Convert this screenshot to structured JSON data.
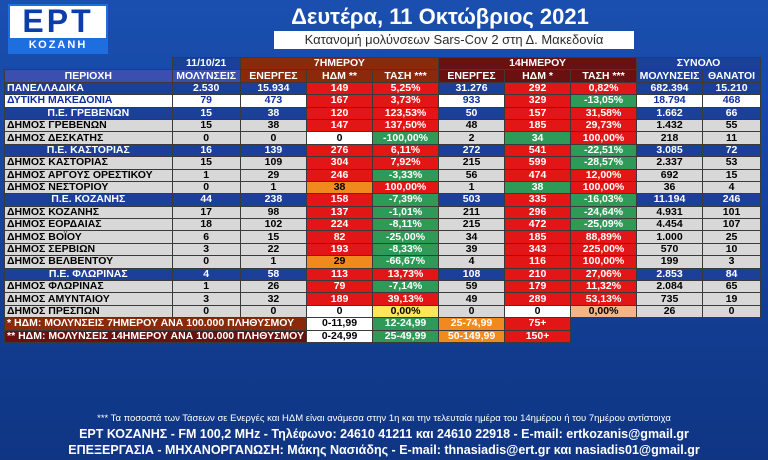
{
  "logo": {
    "main": "ΕΡΤ",
    "sub": "ΚΟΖΑΝΗ"
  },
  "title": "Δευτέρα, 11 Οκτώβριος 2021",
  "subtitle": "Κατανομή μολύνσεων Sars-Cov 2 στη Δ. Μακεδονία",
  "header_top": {
    "date": "11/10/21",
    "g7": "7ΗΜΕΡΟΥ",
    "g14": "14ΗΜΕΡΟΥ",
    "total": "ΣΥΝΟΛΟ"
  },
  "header": [
    "ΠΕΡΙΟΧΗ",
    "ΜΟΛΥΝΣΕΙΣ",
    "ΕΝΕΡΓΕΣ",
    "ΗΔΜ **",
    "ΤΑΣΗ ***",
    "ΕΝΕΡΓΕΣ",
    "ΗΔΜ *",
    "ΤΑΣΗ ***",
    "ΜΟΛΥΝΣΕΙΣ",
    "ΘΑΝΑΤΟΙ"
  ],
  "rows": [
    {
      "type": "nat",
      "c": [
        "ΠΑΝΕΛΛΑΔΙΚΑ",
        "2.530",
        "15.934",
        "149",
        "5,25%",
        "31.276",
        "292",
        "0,82%",
        "682.394",
        "15.210"
      ],
      "k": [
        "",
        "",
        "",
        "red",
        "red",
        "",
        "red",
        "red",
        "",
        ""
      ]
    },
    {
      "type": "reg",
      "c": [
        "ΔΥΤΙΚΗ ΜΑΚΕΔΟΝΙΑ",
        "79",
        "473",
        "167",
        "3,73%",
        "933",
        "329",
        "-13,05%",
        "18.794",
        "468"
      ],
      "k": [
        "",
        "",
        "",
        "red",
        "red",
        "",
        "red",
        "grn",
        "",
        ""
      ]
    },
    {
      "type": "pe",
      "c": [
        "Π.Ε. ΓΡΕΒΕΝΩΝ",
        "15",
        "38",
        "120",
        "123,53%",
        "50",
        "157",
        "31,58%",
        "1.662",
        "66"
      ],
      "k": [
        "",
        "",
        "",
        "red",
        "red",
        "",
        "red",
        "red",
        "",
        ""
      ]
    },
    {
      "type": "dm",
      "c": [
        "ΔΗΜΟΣ ΓΡΕΒΕΝΩΝ",
        "15",
        "38",
        "147",
        "137,50%",
        "48",
        "185",
        "29,73%",
        "1.432",
        "55"
      ],
      "k": [
        "",
        "",
        "",
        "red",
        "red",
        "",
        "red",
        "red",
        "",
        ""
      ]
    },
    {
      "type": "dm",
      "c": [
        "ΔΗΜΟΣ ΔΕΣΚΑΤΗΣ",
        "0",
        "0",
        "0",
        "-100,00%",
        "2",
        "34",
        "100,00%",
        "218",
        "11"
      ],
      "k": [
        "",
        "",
        "",
        "wht",
        "grn",
        "",
        "grn",
        "red",
        "",
        ""
      ]
    },
    {
      "type": "pe",
      "c": [
        "Π.Ε. ΚΑΣΤΟΡΙΑΣ",
        "16",
        "139",
        "276",
        "6,11%",
        "272",
        "541",
        "-22,51%",
        "3.085",
        "72"
      ],
      "k": [
        "",
        "",
        "",
        "red",
        "red",
        "",
        "red",
        "grn",
        "",
        ""
      ]
    },
    {
      "type": "dm",
      "c": [
        "ΔΗΜΟΣ ΚΑΣΤΟΡΙΑΣ",
        "15",
        "109",
        "304",
        "7,92%",
        "215",
        "599",
        "-28,57%",
        "2.337",
        "53"
      ],
      "k": [
        "",
        "",
        "",
        "red",
        "red",
        "",
        "red",
        "grn",
        "",
        ""
      ]
    },
    {
      "type": "dm",
      "c": [
        "ΔΗΜΟΣ ΑΡΓΟΥΣ ΟΡΕΣΤΙΚΟΥ",
        "1",
        "29",
        "246",
        "-3,33%",
        "56",
        "474",
        "12,00%",
        "692",
        "15"
      ],
      "k": [
        "",
        "",
        "",
        "red",
        "grn",
        "",
        "red",
        "red",
        "",
        ""
      ]
    },
    {
      "type": "dm",
      "c": [
        "ΔΗΜΟΣ ΝΕΣΤΟΡΙΟΥ",
        "0",
        "1",
        "38",
        "100,00%",
        "1",
        "38",
        "100,00%",
        "36",
        "4"
      ],
      "k": [
        "",
        "",
        "",
        "org",
        "red",
        "",
        "grn",
        "red",
        "",
        ""
      ]
    },
    {
      "type": "pe",
      "c": [
        "Π.Ε. ΚΟΖΑΝΗΣ",
        "44",
        "238",
        "158",
        "-7,39%",
        "503",
        "335",
        "-16,03%",
        "11.194",
        "246"
      ],
      "k": [
        "",
        "",
        "",
        "red",
        "grn",
        "",
        "red",
        "grn",
        "",
        ""
      ]
    },
    {
      "type": "dm",
      "c": [
        "ΔΗΜΟΣ ΚΟΖΑΝΗΣ",
        "17",
        "98",
        "137",
        "-1,01%",
        "211",
        "296",
        "-24,64%",
        "4.931",
        "101"
      ],
      "k": [
        "",
        "",
        "",
        "red",
        "grn",
        "",
        "red",
        "grn",
        "",
        ""
      ]
    },
    {
      "type": "dm",
      "c": [
        "ΔΗΜΟΣ ΕΟΡΔΑΙΑΣ",
        "18",
        "102",
        "224",
        "-8,11%",
        "215",
        "472",
        "-25,09%",
        "4.454",
        "107"
      ],
      "k": [
        "",
        "",
        "",
        "red",
        "grn",
        "",
        "red",
        "grn",
        "",
        ""
      ]
    },
    {
      "type": "dm",
      "c": [
        "ΔΗΜΟΣ ΒΟΪΟΥ",
        "6",
        "15",
        "82",
        "-25,00%",
        "34",
        "185",
        "88,89%",
        "1.000",
        "25"
      ],
      "k": [
        "",
        "",
        "",
        "red",
        "grn",
        "",
        "red",
        "red",
        "",
        ""
      ]
    },
    {
      "type": "dm",
      "c": [
        "ΔΗΜΟΣ ΣΕΡΒΙΩΝ",
        "3",
        "22",
        "193",
        "-8,33%",
        "39",
        "343",
        "225,00%",
        "570",
        "10"
      ],
      "k": [
        "",
        "",
        "",
        "red",
        "grn",
        "",
        "red",
        "red",
        "",
        ""
      ]
    },
    {
      "type": "dm",
      "c": [
        "ΔΗΜΟΣ ΒΕΛΒΕΝΤΟΥ",
        "0",
        "1",
        "29",
        "-66,67%",
        "4",
        "116",
        "100,00%",
        "199",
        "3"
      ],
      "k": [
        "",
        "",
        "",
        "org",
        "grn",
        "",
        "red",
        "red",
        "",
        ""
      ]
    },
    {
      "type": "pe",
      "c": [
        "Π.Ε. ΦΛΩΡΙΝΑΣ",
        "4",
        "58",
        "113",
        "13,73%",
        "108",
        "210",
        "27,06%",
        "2.853",
        "84"
      ],
      "k": [
        "",
        "",
        "",
        "red",
        "red",
        "",
        "red",
        "red",
        "",
        ""
      ]
    },
    {
      "type": "dm",
      "c": [
        "ΔΗΜΟΣ ΦΛΩΡΙΝΑΣ",
        "1",
        "26",
        "79",
        "-7,14%",
        "59",
        "179",
        "11,32%",
        "2.084",
        "65"
      ],
      "k": [
        "",
        "",
        "",
        "red",
        "grn",
        "",
        "red",
        "red",
        "",
        ""
      ]
    },
    {
      "type": "dm",
      "c": [
        "ΔΗΜΟΣ ΑΜΥΝΤΑΙΟΥ",
        "3",
        "32",
        "189",
        "39,13%",
        "49",
        "289",
        "53,13%",
        "735",
        "19"
      ],
      "k": [
        "",
        "",
        "",
        "red",
        "red",
        "",
        "red",
        "red",
        "",
        ""
      ]
    },
    {
      "type": "dm",
      "c": [
        "ΔΗΜΟΣ ΠΡΕΣΠΩΝ",
        "0",
        "0",
        "0",
        "0,00%",
        "0",
        "0",
        "0,00%",
        "26",
        "0"
      ],
      "k": [
        "",
        "",
        "",
        "wht",
        "yel",
        "",
        "wht",
        "lor",
        "",
        ""
      ]
    }
  ],
  "legend": [
    {
      "label": "* ΗΔΜ: ΜΟΛΥΝΣΕΙΣ 7ΗΜΕΡΟΥ ΑΝΑ 100.000 ΠΛΗΘΥΣΜΟΥ",
      "ranges": [
        "0-11,99",
        "12-24,99",
        "25-74,99",
        "75+"
      ]
    },
    {
      "label": "** ΗΔΜ: ΜΟΛΥΝΣΕΙΣ 14ΗΜΕΡΟΥ ΑΝΑ 100.000 ΠΛΗΘΥΣΜΟΥ",
      "ranges": [
        "0-24,99",
        "25-49,99",
        "50-149,99",
        "150+"
      ]
    }
  ],
  "note": "*** Τα ποσοστά των Τάσεων σε Ενεργές και ΗΔΜ είναι ανάμεσα στην 1η και την τελευταία ημέρα του 14ημέρου ή του 7ημέρου αντίστοιχα",
  "footer1": "ΕΡΤ ΚΟΖΑΝΗΣ - FM 100,2 MHz - Τηλέφωνο:  24610 41211 και 24610 22918 - E-mail: ertkozanis@gmail.gr",
  "footer2": "ΕΠΕΞΕΡΓΑΣΙΑ  -  ΜΗΧΑΝΟΡΓΑΝΩΣΗ: Μάκης Νασιάδης  -  E-mail: thnasiadis@ert.gr και nasiadis01@gmail.gr",
  "colors": {
    "red": "#e21616",
    "green": "#2f9a57",
    "orange": "#f08a1e",
    "yellow": "#ffe65a",
    "header7": "#8a2a0a",
    "header14": "#6a1010",
    "blue": "#1c3f9a"
  }
}
